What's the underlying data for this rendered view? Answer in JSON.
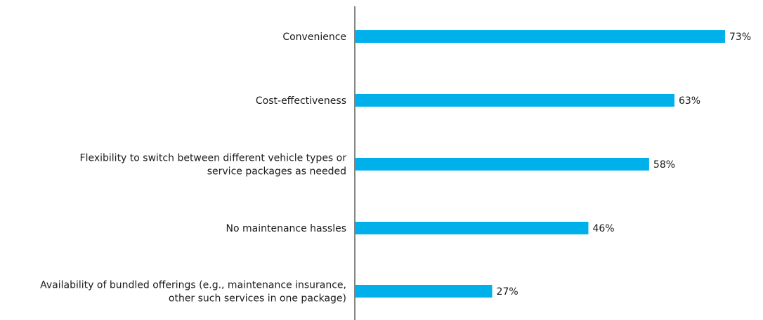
{
  "chart_data": {
    "type": "bar",
    "orientation": "horizontal",
    "categories": [
      [
        "Convenience"
      ],
      [
        "Cost-effectiveness"
      ],
      [
        "Flexibility to switch between different vehicle types or",
        "service packages as needed"
      ],
      [
        "No maintenance hassles"
      ],
      [
        "Availability of bundled offerings (e.g., maintenance insurance,",
        "other such services in one package)"
      ]
    ],
    "values": [
      73,
      63,
      58,
      46,
      27
    ],
    "value_labels": [
      "73%",
      "63%",
      "58%",
      "46%",
      "27%"
    ],
    "title": "",
    "xlabel": "",
    "ylabel": "",
    "xlim": [
      0,
      73
    ],
    "grid": false,
    "legend": "none",
    "bar_color": "#00b0ea",
    "axis_color": "#333333",
    "text_color": "#1a1a1a"
  }
}
